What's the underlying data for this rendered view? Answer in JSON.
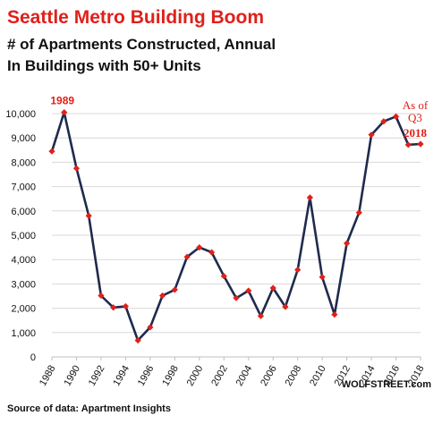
{
  "header": {
    "title": "Seattle Metro Building Boom",
    "subtitle_line1": "# of Apartments Constructed,  Annual",
    "subtitle_line2": "In Buildings with 50+ Units"
  },
  "footer": {
    "source": "Source of data: Apartment Insights",
    "brand": "WOLFSTREET.com"
  },
  "colors": {
    "title": "#e0201a",
    "line": "#1f2a4e",
    "marker": "#e0201a",
    "grid": "#d9d9d9",
    "annotation": "#e0201a"
  },
  "chart_data": {
    "type": "line",
    "title": "Seattle Metro Building Boom",
    "subtitle": "# of Apartments Constructed,  Annual\nIn Buildings with 50+ Units",
    "xlabel": "",
    "ylabel": "",
    "ylim": [
      0,
      10000
    ],
    "xlim": [
      1988,
      2018
    ],
    "grid": "horizontal",
    "y_ticks": [
      0,
      1000,
      2000,
      3000,
      4000,
      5000,
      6000,
      7000,
      8000,
      9000,
      10000
    ],
    "y_tick_labels": [
      "0",
      "1,000",
      "2,000",
      "3,000",
      "4,000",
      "5,000",
      "6,000",
      "7,000",
      "8,000",
      "9,000",
      "10,000"
    ],
    "x_ticks": [
      1988,
      1990,
      1992,
      1994,
      1996,
      1998,
      2000,
      2002,
      2004,
      2006,
      2008,
      2010,
      2012,
      2014,
      2016,
      2018
    ],
    "x_tick_labels": [
      "1988",
      "1990",
      "1992",
      "1994",
      "1996",
      "1998",
      "2000",
      "2002",
      "2004",
      "2006",
      "2008",
      "2010",
      "2012",
      "2014",
      "2016",
      "2018"
    ],
    "x": [
      1988,
      1989,
      1990,
      1991,
      1992,
      1993,
      1994,
      1995,
      1996,
      1997,
      1998,
      1999,
      2000,
      2001,
      2002,
      2003,
      2004,
      2005,
      2006,
      2007,
      2008,
      2009,
      2010,
      2011,
      2012,
      2013,
      2014,
      2015,
      2016,
      2017,
      2018
    ],
    "series": [
      {
        "name": "",
        "values": [
          8450,
          10050,
          7750,
          5800,
          2520,
          2030,
          2080,
          680,
          1220,
          2520,
          2760,
          4110,
          4500,
          4300,
          3320,
          2420,
          2720,
          1680,
          2830,
          2060,
          3580,
          6550,
          3280,
          1740,
          4670,
          5930,
          9130,
          9680,
          9880,
          8720,
          8750
        ]
      }
    ],
    "annotations": [
      {
        "text": "1989",
        "x": 1989,
        "y": 10050
      },
      {
        "text": "As of",
        "x": 2018,
        "y": 8750
      },
      {
        "text": "Q3",
        "x": 2018,
        "y": 8750
      },
      {
        "text": "2018",
        "x": 2018,
        "y": 8750
      }
    ]
  }
}
